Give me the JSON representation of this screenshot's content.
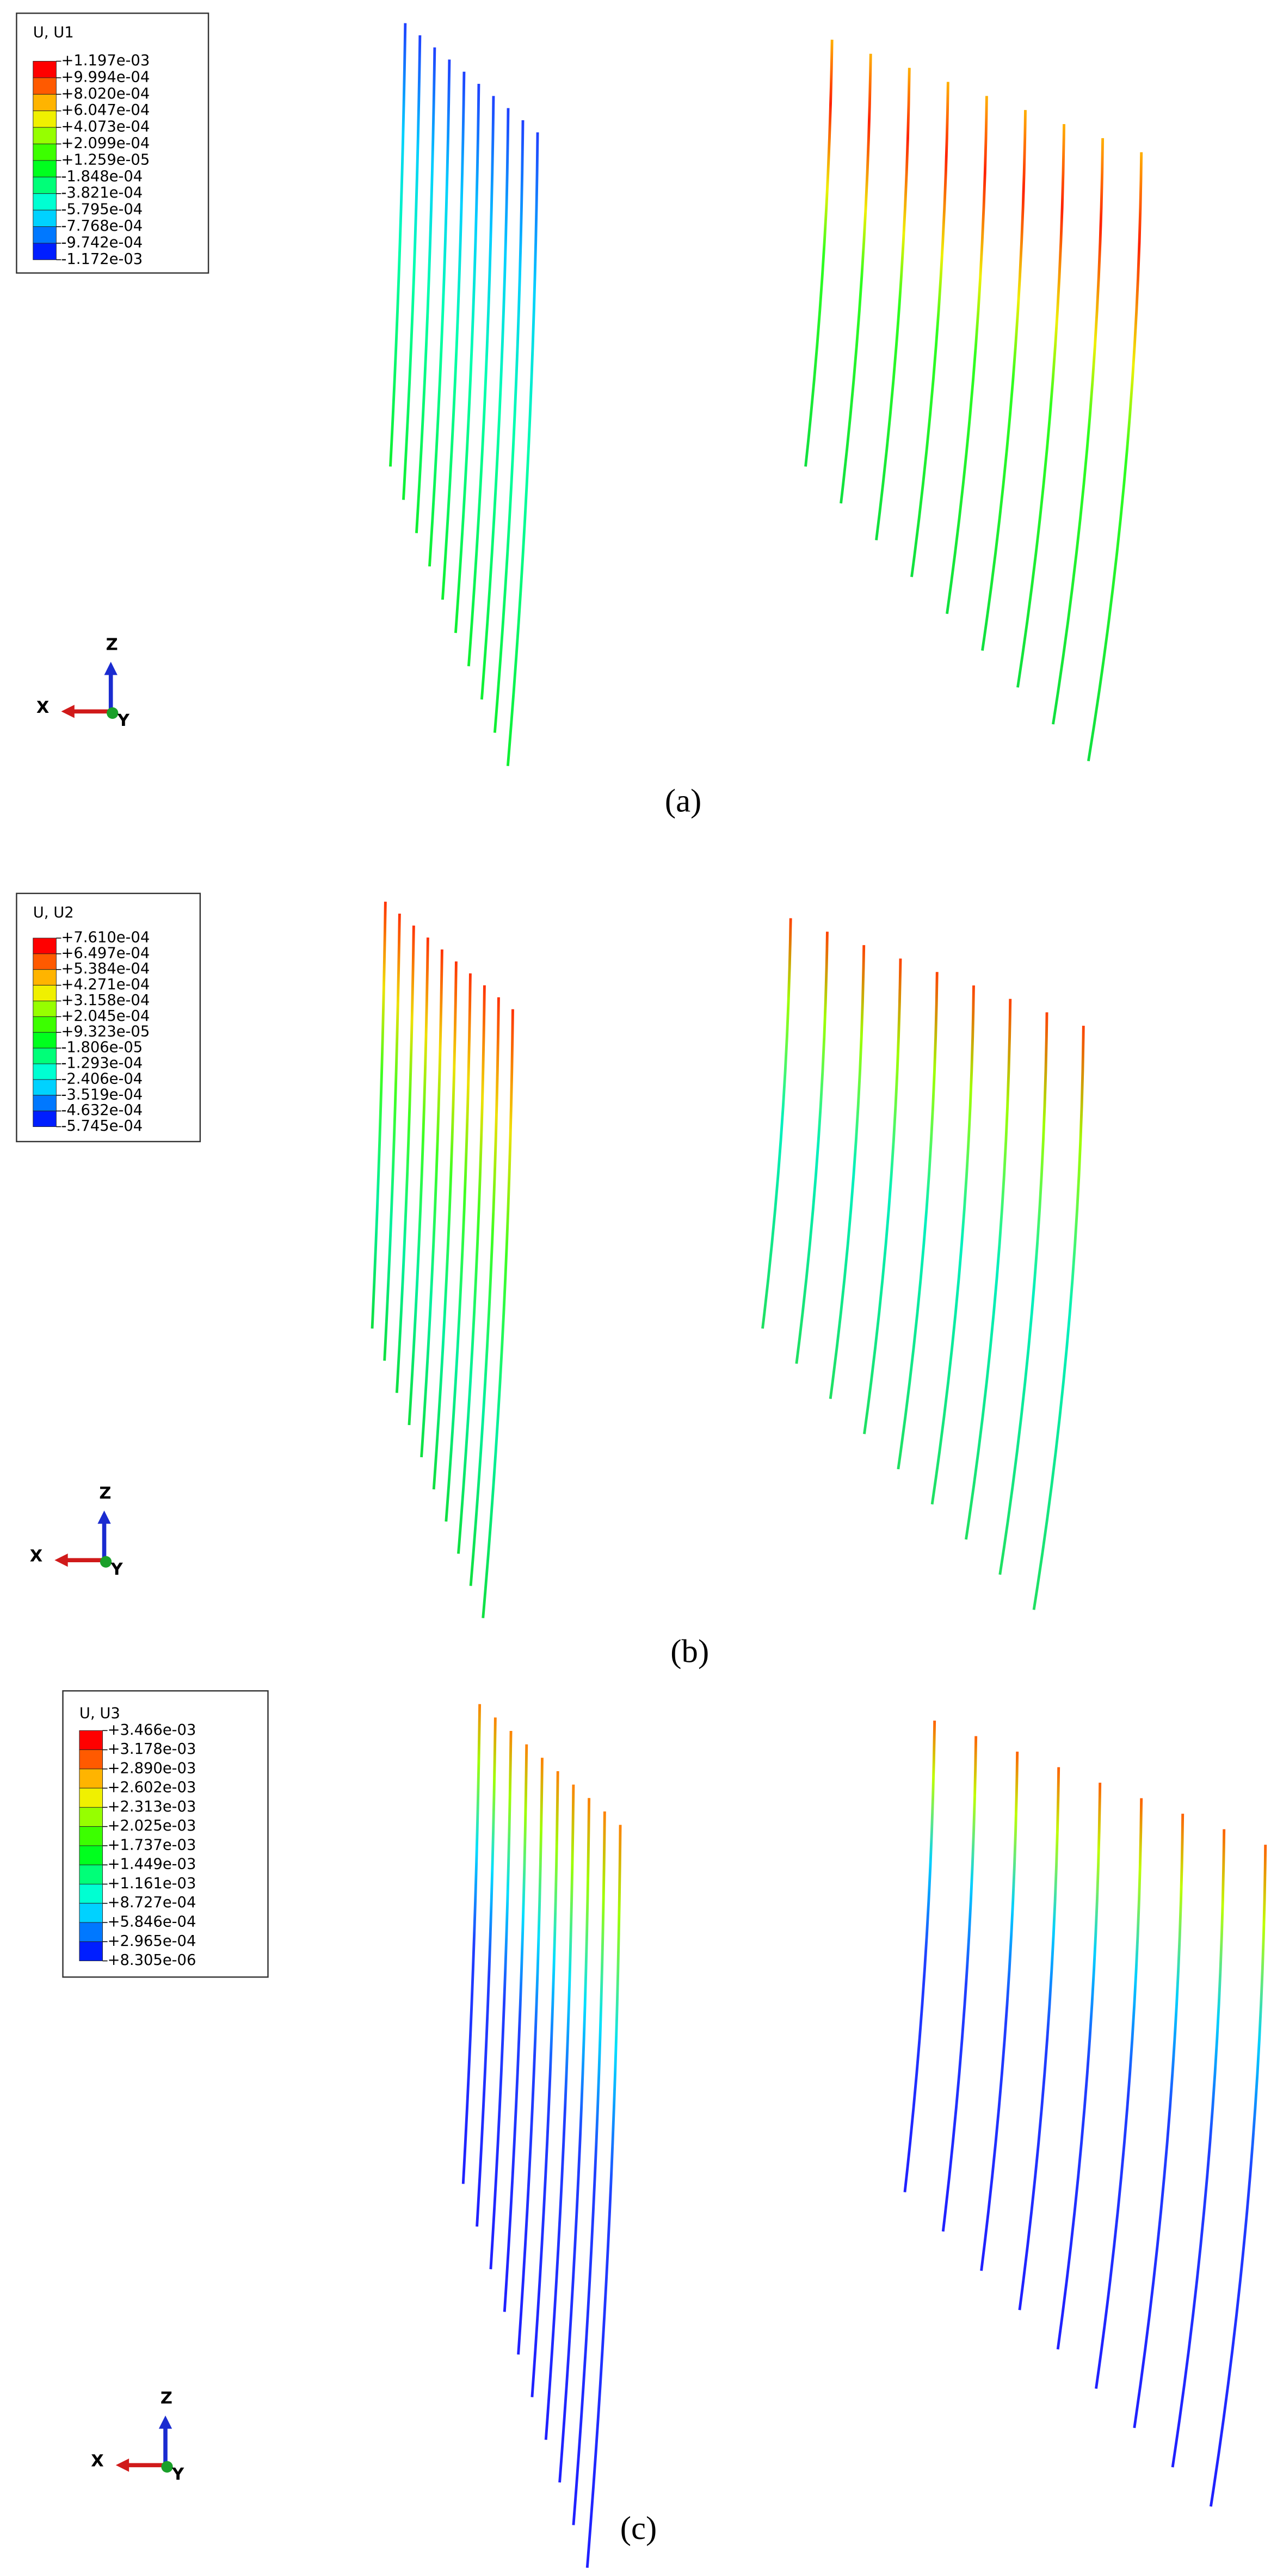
{
  "panels": [
    {
      "legend": {
        "title": "U, U1",
        "values": [
          "+1.197e-03",
          "+9.994e-04",
          "+8.020e-04",
          "+6.047e-04",
          "+4.073e-04",
          "+2.099e-04",
          "+1.259e-05",
          "-1.848e-04",
          "-3.821e-04",
          "-5.795e-04",
          "-7.768e-04",
          "-9.742e-04",
          "-1.172e-03"
        ]
      },
      "axes": {
        "z": "Z",
        "x": "X",
        "y": "Y"
      },
      "caption": "(a)"
    },
    {
      "legend": {
        "title": "U, U2",
        "values": [
          "+7.610e-04",
          "+6.497e-04",
          "+5.384e-04",
          "+4.271e-04",
          "+3.158e-04",
          "+2.045e-04",
          "+9.323e-05",
          "-1.806e-05",
          "-1.293e-04",
          "-2.406e-04",
          "-3.519e-04",
          "-4.632e-04",
          "-5.745e-04"
        ]
      },
      "axes": {
        "z": "Z",
        "x": "X",
        "y": "Y"
      },
      "caption": "(b)"
    },
    {
      "legend": {
        "title": "U, U3",
        "values": [
          "+3.466e-03",
          "+3.178e-03",
          "+2.890e-03",
          "+2.602e-03",
          "+2.313e-03",
          "+2.025e-03",
          "+1.737e-03",
          "+1.449e-03",
          "+1.161e-03",
          "+8.727e-04",
          "+5.846e-04",
          "+2.965e-04",
          "+8.305e-06"
        ]
      },
      "axes": {
        "z": "Z",
        "x": "X",
        "y": "Y"
      },
      "caption": "(c)"
    }
  ]
}
